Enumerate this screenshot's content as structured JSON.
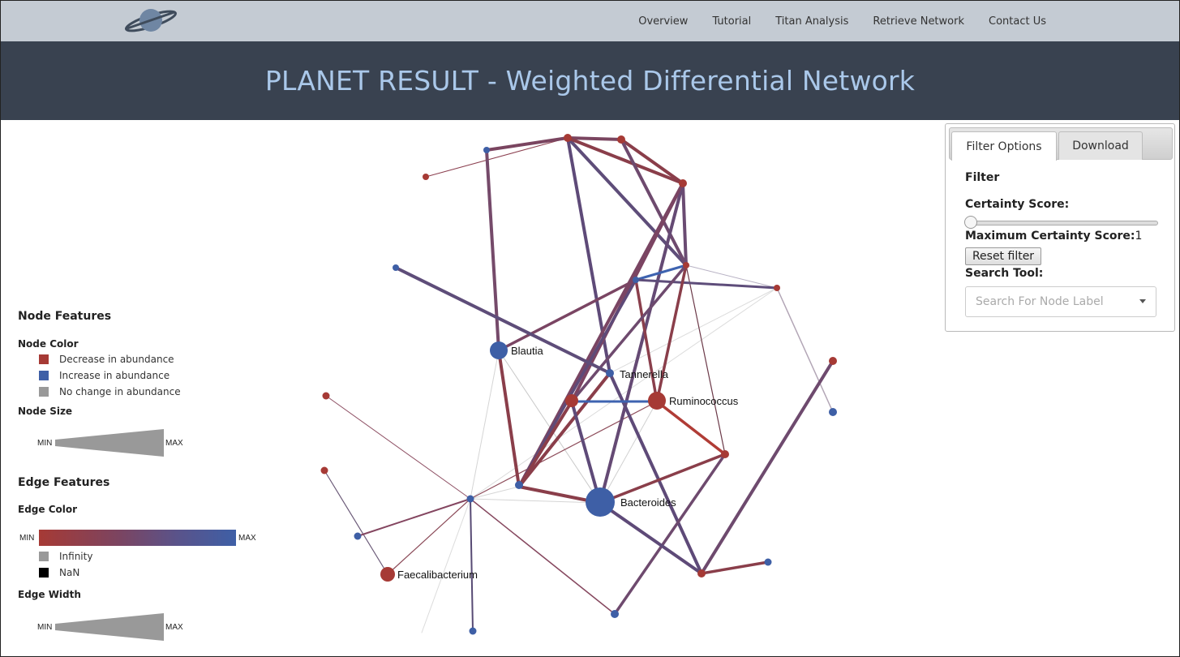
{
  "nav": {
    "logo_icon": "saturn-planet-icon",
    "links": [
      "Overview",
      "Tutorial",
      "Titan Analysis",
      "Retrieve Network",
      "Contact Us"
    ]
  },
  "header": {
    "title": "PLANET RESULT - Weighted Differential Network"
  },
  "network": {
    "labels": {
      "blautia": "Blautia",
      "tannerella": "Tannerella",
      "ruminococcus": "Ruminococcus",
      "bacteroides": "Bacteroides",
      "faecalibacterium": "Faecalibacterium"
    },
    "colors": {
      "decrease": "#a63a35",
      "increase": "#3e5fa6",
      "mid": "#6e4a6a"
    }
  },
  "legend": {
    "node_features": "Node Features",
    "node_color": "Node Color",
    "decrease": "Decrease in abundance",
    "increase": "Increase in abundance",
    "nochange": "No change in abundance",
    "node_size": "Node Size",
    "edge_features": "Edge Features",
    "edge_color": "Edge Color",
    "infinity": "Infinity",
    "nan": "NaN",
    "edge_width": "Edge Width",
    "min": "MIN",
    "max": "MAX"
  },
  "filter": {
    "tabs": [
      "Filter Options",
      "Download"
    ],
    "filter_heading": "Filter",
    "certainty_label": "Certainty Score:",
    "max_certainty_label": "Maximum Certainty Score:",
    "max_certainty_value": "1",
    "reset_label": "Reset filter",
    "search_label": "Search Tool:",
    "search_placeholder": "Search For Node Label"
  }
}
